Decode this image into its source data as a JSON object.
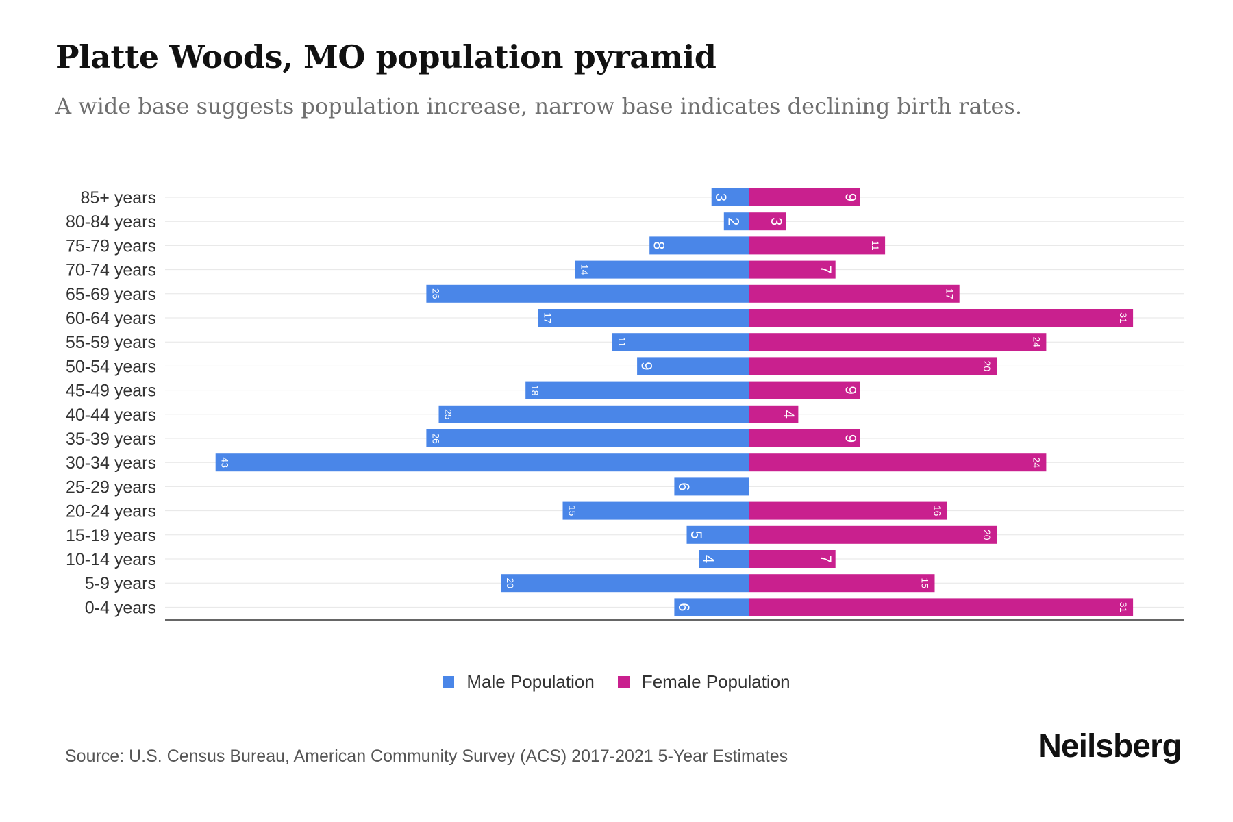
{
  "header": {
    "title": "Platte Woods, MO population pyramid",
    "subtitle": "A wide base suggests population increase, narrow base indicates declining birth rates."
  },
  "legend": {
    "male_label": "Male Population",
    "female_label": "Female Population"
  },
  "footer": {
    "source": "Source: U.S. Census Bureau, American Community Survey (ACS) 2017-2021 5-Year Estimates",
    "brand": "Neilsberg"
  },
  "colors": {
    "male": "#4a86e8",
    "female": "#c9208e",
    "grid": "#e6e6e6",
    "axis": "#333333"
  },
  "chart_data": {
    "type": "bar",
    "orientation": "horizontal-pyramid",
    "title": "Platte Woods, MO population pyramid",
    "subtitle": "A wide base suggests population increase, narrow base indicates declining birth rates.",
    "categories": [
      "85+ years",
      "80-84 years",
      "75-79 years",
      "70-74 years",
      "65-69 years",
      "60-64 years",
      "55-59 years",
      "50-54 years",
      "45-49 years",
      "40-44 years",
      "35-39 years",
      "30-34 years",
      "25-29 years",
      "20-24 years",
      "15-19 years",
      "10-14 years",
      "5-9 years",
      "0-4 years"
    ],
    "series": [
      {
        "name": "Male Population",
        "values": [
          3,
          2,
          8,
          14,
          26,
          17,
          11,
          9,
          18,
          25,
          26,
          43,
          6,
          15,
          5,
          4,
          20,
          6
        ]
      },
      {
        "name": "Female Population",
        "values": [
          9,
          3,
          11,
          7,
          17,
          31,
          24,
          20,
          9,
          4,
          9,
          24,
          0,
          16,
          20,
          7,
          15,
          31
        ]
      }
    ],
    "legend_position": "bottom",
    "grid": true,
    "data_labels": true
  }
}
